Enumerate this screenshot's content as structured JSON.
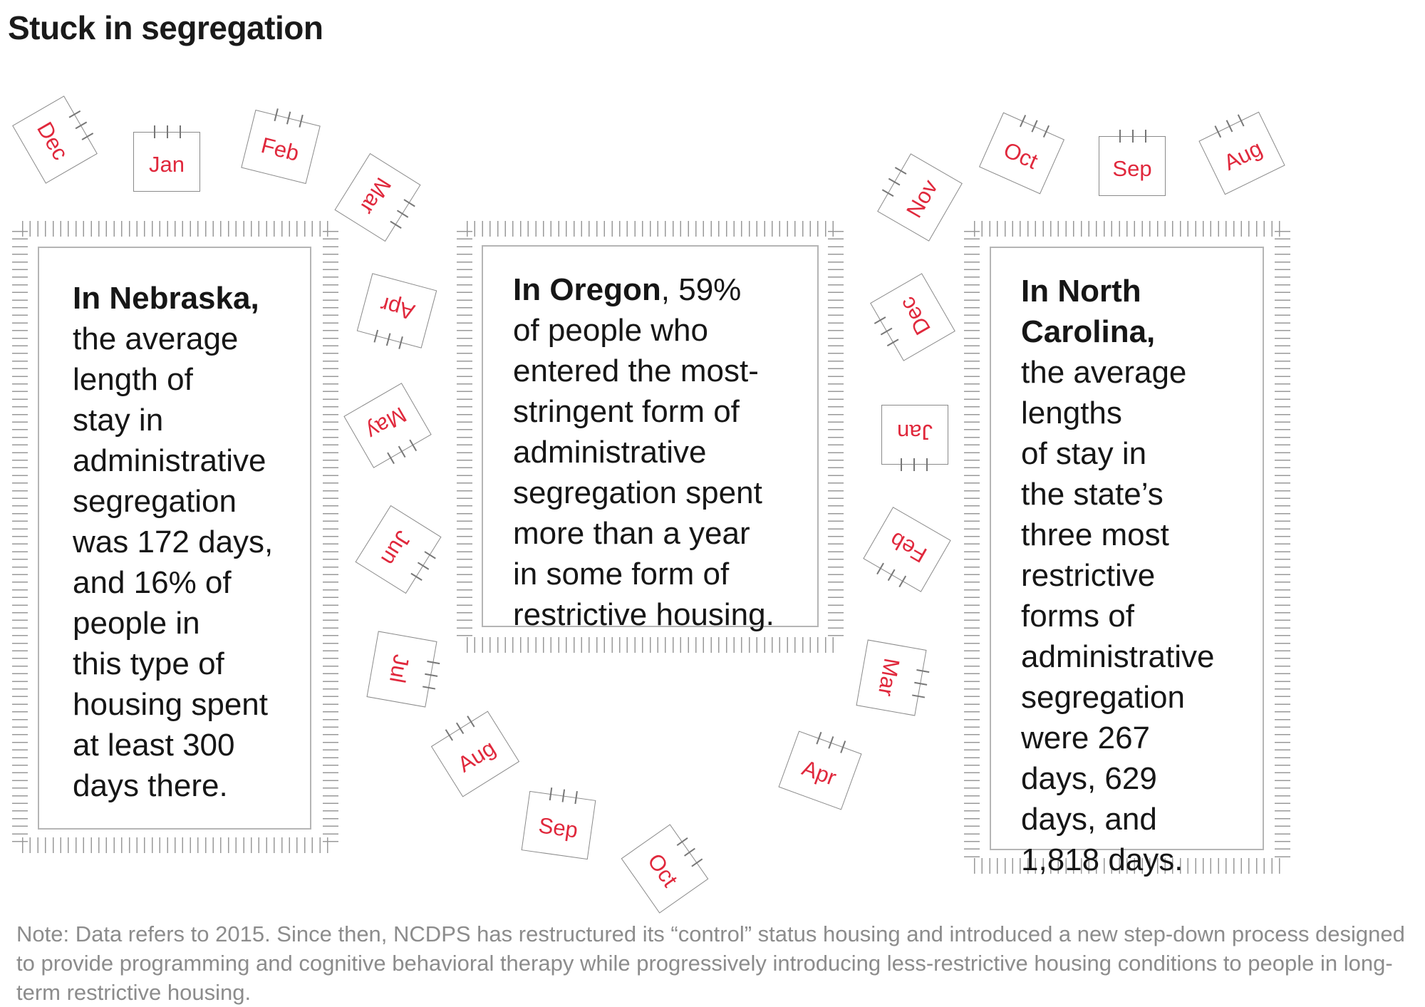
{
  "title": "Stuck in segregation",
  "accent_color": "#e0283c",
  "panels": [
    {
      "lines": [
        {
          "bold": "In Nebraska,",
          "text": ""
        },
        {
          "bold": "",
          "text": "the average"
        },
        {
          "bold": "",
          "text": "length of"
        },
        {
          "bold": "",
          "text": "stay in"
        },
        {
          "bold": "",
          "text": "administrative"
        },
        {
          "bold": "",
          "text": "segregation"
        },
        {
          "bold": "",
          "text": "was 172 days,"
        },
        {
          "bold": "",
          "text": "and 16% of"
        },
        {
          "bold": "",
          "text": "people in"
        },
        {
          "bold": "",
          "text": "this type of"
        },
        {
          "bold": "",
          "text": "housing spent"
        },
        {
          "bold": "",
          "text": "at least 300"
        },
        {
          "bold": "",
          "text": "days there."
        }
      ]
    },
    {
      "lines": [
        {
          "bold": "In Oregon",
          "text": ", 59%"
        },
        {
          "bold": "",
          "text": "of people who"
        },
        {
          "bold": "",
          "text": "entered the most-"
        },
        {
          "bold": "",
          "text": "stringent form of"
        },
        {
          "bold": "",
          "text": "administrative"
        },
        {
          "bold": "",
          "text": "segregation spent"
        },
        {
          "bold": "",
          "text": "more than a year"
        },
        {
          "bold": "",
          "text": "in some form of"
        },
        {
          "bold": "",
          "text": "restrictive housing."
        }
      ]
    },
    {
      "lines": [
        {
          "bold": "In North",
          "text": ""
        },
        {
          "bold": "Carolina,",
          "text": ""
        },
        {
          "bold": "",
          "text": "the average"
        },
        {
          "bold": "",
          "text": "lengths"
        },
        {
          "bold": "",
          "text": "of stay in"
        },
        {
          "bold": "",
          "text": "the state’s"
        },
        {
          "bold": "",
          "text": "three most"
        },
        {
          "bold": "",
          "text": "restrictive"
        },
        {
          "bold": "",
          "text": "forms of"
        },
        {
          "bold": "",
          "text": "administrative"
        },
        {
          "bold": "",
          "text": "segregation"
        },
        {
          "bold": "",
          "text": "were 267"
        },
        {
          "bold": "",
          "text": "days, 629"
        },
        {
          "bold": "",
          "text": "days, and"
        },
        {
          "bold": "",
          "text": "1,818 days."
        }
      ]
    }
  ],
  "calendar_pages": [
    "Dec",
    "Jan",
    "Feb",
    "Mar",
    "Apr",
    "May",
    "Jun",
    "Jul",
    "Aug",
    "Sep",
    "Oct",
    "Apr",
    "Mar",
    "Feb",
    "Jan",
    "Dec",
    "Nov",
    "Oct",
    "Sep",
    "Aug"
  ],
  "note": "Note: Data refers to 2015. Since then, NCDPS has restructured its “control” status housing and introduced a new step-down process designed to provide programming and cognitive behavioral therapy while progressively introducing less-restrictive housing conditions to people in long-term restrictive housing."
}
